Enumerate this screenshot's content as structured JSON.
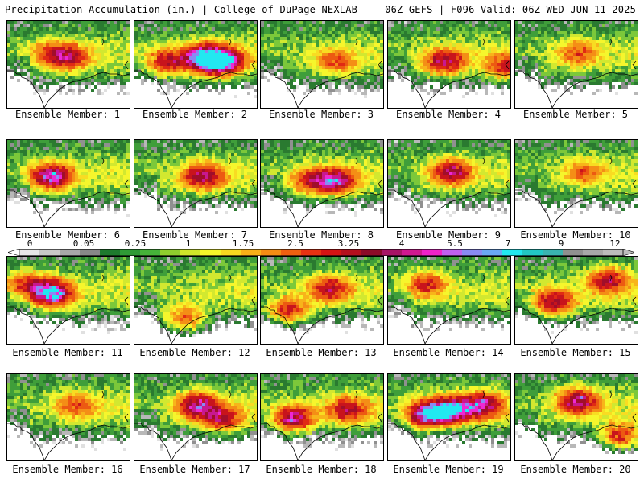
{
  "header": {
    "left": "Precipitation Accumulation (in.) | College of DuPage NEXLAB",
    "right": "06Z GEFS | F096 Valid: 06Z WED JUN 11 2025"
  },
  "members": [
    {
      "label": "Ensemble Member: 1",
      "intensity": 2,
      "hotspots": [
        [
          0.5,
          0.4,
          2.8
        ],
        [
          0.35,
          0.35,
          2.0
        ]
      ]
    },
    {
      "label": "Ensemble Member: 2",
      "intensity": 3,
      "hotspots": [
        [
          0.55,
          0.4,
          5.0
        ],
        [
          0.7,
          0.45,
          6.0
        ],
        [
          0.25,
          0.45,
          3.0
        ]
      ]
    },
    {
      "label": "Ensemble Member: 3",
      "intensity": 1,
      "hotspots": [
        [
          0.6,
          0.45,
          2.0
        ]
      ]
    },
    {
      "label": "Ensemble Member: 4",
      "intensity": 2,
      "hotspots": [
        [
          0.45,
          0.45,
          3.5
        ],
        [
          0.95,
          0.5,
          2.5
        ]
      ]
    },
    {
      "label": "Ensemble Member: 5",
      "intensity": 1,
      "hotspots": [
        [
          0.5,
          0.35,
          2.0
        ]
      ]
    },
    {
      "label": "Ensemble Member: 6",
      "intensity": 2,
      "hotspots": [
        [
          0.35,
          0.4,
          4.5
        ]
      ]
    },
    {
      "label": "Ensemble Member: 7",
      "intensity": 2,
      "hotspots": [
        [
          0.55,
          0.4,
          3.5
        ]
      ]
    },
    {
      "label": "Ensemble Member: 8",
      "intensity": 2,
      "hotspots": [
        [
          0.6,
          0.45,
          4.0
        ],
        [
          0.4,
          0.45,
          2.5
        ]
      ]
    },
    {
      "label": "Ensemble Member: 9",
      "intensity": 2,
      "hotspots": [
        [
          0.5,
          0.35,
          3.5
        ]
      ]
    },
    {
      "label": "Ensemble Member: 10",
      "intensity": 1,
      "hotspots": [
        [
          0.55,
          0.35,
          1.75
        ]
      ]
    },
    {
      "label": "Ensemble Member: 11",
      "intensity": 3,
      "hotspots": [
        [
          0.35,
          0.4,
          5.5
        ],
        [
          0.15,
          0.3,
          2.5
        ]
      ]
    },
    {
      "label": "Ensemble Member: 12",
      "intensity": 1,
      "hotspots": [
        [
          0.4,
          0.7,
          2.5
        ]
      ]
    },
    {
      "label": "Ensemble Member: 13",
      "intensity": 2,
      "hotspots": [
        [
          0.55,
          0.35,
          3.0
        ],
        [
          0.2,
          0.6,
          3.0
        ]
      ]
    },
    {
      "label": "Ensemble Member: 14",
      "intensity": 1,
      "hotspots": [
        [
          0.3,
          0.3,
          2.5
        ]
      ]
    },
    {
      "label": "Ensemble Member: 15",
      "intensity": 2,
      "hotspots": [
        [
          0.3,
          0.5,
          3.5
        ],
        [
          0.75,
          0.25,
          3.0
        ]
      ]
    },
    {
      "label": "Ensemble Member: 16",
      "intensity": 1,
      "hotspots": [
        [
          0.55,
          0.35,
          2.0
        ]
      ]
    },
    {
      "label": "Ensemble Member: 17",
      "intensity": 2,
      "hotspots": [
        [
          0.5,
          0.35,
          4.0
        ],
        [
          0.7,
          0.5,
          3.0
        ]
      ]
    },
    {
      "label": "Ensemble Member: 18",
      "intensity": 2,
      "hotspots": [
        [
          0.25,
          0.5,
          4.0
        ],
        [
          0.7,
          0.4,
          3.0
        ]
      ]
    },
    {
      "label": "Ensemble Member: 19",
      "intensity": 3,
      "hotspots": [
        [
          0.5,
          0.4,
          5.0
        ],
        [
          0.3,
          0.45,
          5.0
        ],
        [
          0.75,
          0.35,
          4.0
        ]
      ]
    },
    {
      "label": "Ensemble Member: 20",
      "intensity": 2,
      "hotspots": [
        [
          0.5,
          0.3,
          4.0
        ],
        [
          0.85,
          0.7,
          3.0
        ]
      ]
    }
  ],
  "colorbar": {
    "labels": [
      "0",
      "0.05",
      "0.25",
      "1",
      "1.75",
      "2.5",
      "3.25",
      "4",
      "5.5",
      "7",
      "9",
      "12"
    ],
    "colors": [
      "#e8e8e8",
      "#c8c8c8",
      "#a8a8a8",
      "#888888",
      "#1e7a2e",
      "#2f9a36",
      "#46b23a",
      "#8fce2e",
      "#cfe62a",
      "#f5f52a",
      "#f8d820",
      "#f8b018",
      "#f48c14",
      "#ee6010",
      "#e83212",
      "#d41414",
      "#b4101e",
      "#8c0a28",
      "#a81466",
      "#d01890",
      "#ee22c8",
      "#c060ee",
      "#8a8af4",
      "#6aa8f4",
      "#22e8f0",
      "#22c8c4",
      "#3ab4b0",
      "#909090",
      "#a8a8a8",
      "#bcbcbc"
    ]
  }
}
